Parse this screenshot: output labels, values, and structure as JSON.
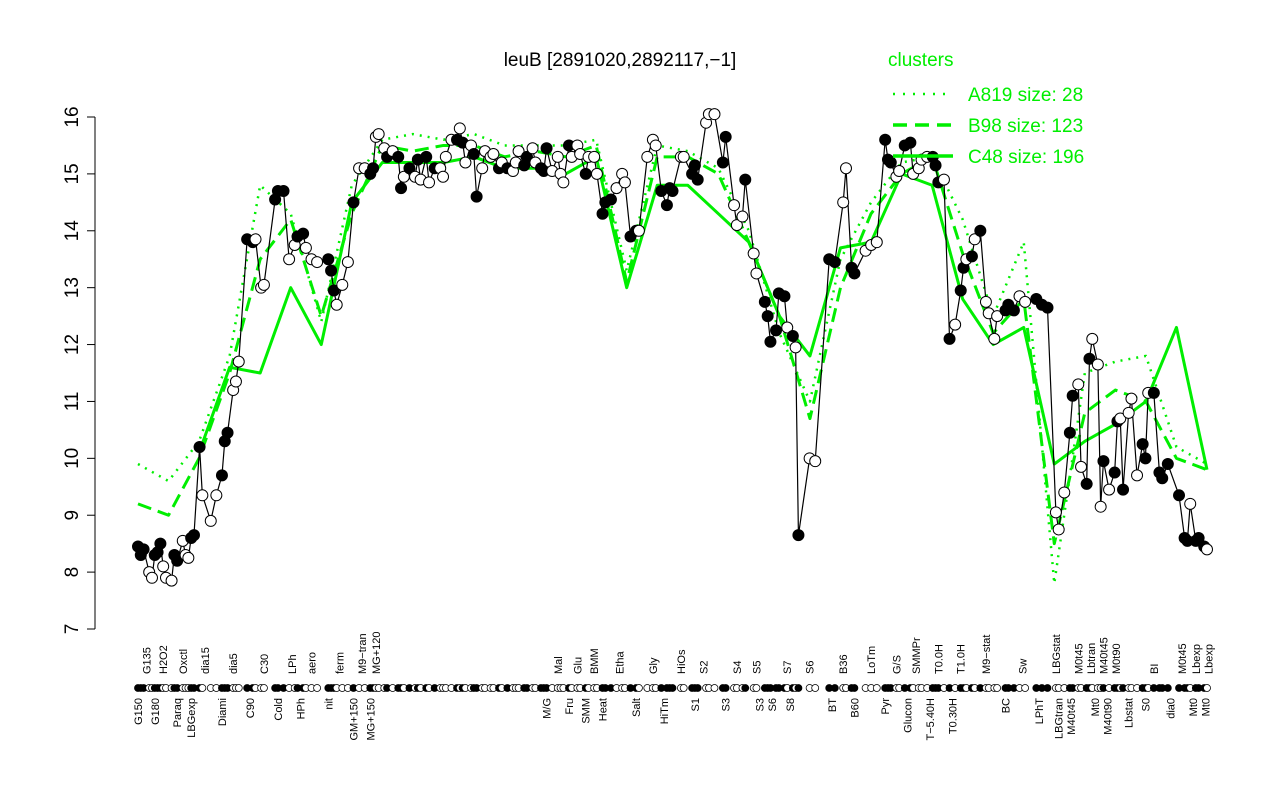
{
  "chart_data": {
    "type": "line",
    "title": "leuB [2891020,2892117,−1]",
    "xlabel": "",
    "ylabel": "",
    "ylim": [
      7,
      16
    ],
    "xlim": [
      0,
      382
    ],
    "yticks": [
      "7",
      "8",
      "9",
      "10",
      "11",
      "12",
      "13",
      "14",
      "15",
      "16"
    ],
    "grid": false,
    "colors": {
      "points": "#000000",
      "clusters": "#00ee00"
    },
    "legend": {
      "title": "clusters",
      "placement": "top-right",
      "entries": [
        {
          "label": "A819 size: 28",
          "style": "dotted"
        },
        {
          "label": "B98 size: 123",
          "style": "dashed"
        },
        {
          "label": "C48 size: 196",
          "style": "solid"
        }
      ]
    },
    "points_note": "[condition_index, expression, filled(1)/open(0)]",
    "points": [
      [
        0,
        8.45,
        1
      ],
      [
        1,
        8.3,
        1
      ],
      [
        2,
        8.4,
        1
      ],
      [
        4,
        8.0,
        0
      ],
      [
        5,
        7.9,
        0
      ],
      [
        6,
        8.3,
        1
      ],
      [
        7,
        8.35,
        1
      ],
      [
        8,
        8.5,
        1
      ],
      [
        9,
        8.1,
        0
      ],
      [
        10,
        7.9,
        0
      ],
      [
        12,
        7.85,
        0
      ],
      [
        13,
        8.3,
        1
      ],
      [
        14,
        8.2,
        1
      ],
      [
        16,
        8.55,
        0
      ],
      [
        17,
        8.3,
        0
      ],
      [
        18,
        8.25,
        0
      ],
      [
        19,
        8.6,
        1
      ],
      [
        20,
        8.65,
        1
      ],
      [
        22,
        10.2,
        1
      ],
      [
        23,
        9.35,
        0
      ],
      [
        26,
        8.9,
        0
      ],
      [
        28,
        9.35,
        0
      ],
      [
        30,
        9.7,
        1
      ],
      [
        31,
        10.3,
        1
      ],
      [
        32,
        10.45,
        1
      ],
      [
        34,
        11.2,
        0
      ],
      [
        35,
        11.35,
        0
      ],
      [
        36,
        11.7,
        0
      ],
      [
        39,
        13.85,
        1
      ],
      [
        41,
        13.8,
        1
      ],
      [
        42,
        13.85,
        0
      ],
      [
        44,
        13.0,
        0
      ],
      [
        45,
        13.05,
        0
      ],
      [
        49,
        14.55,
        1
      ],
      [
        50,
        14.7,
        1
      ],
      [
        52,
        14.7,
        1
      ],
      [
        54,
        13.5,
        0
      ],
      [
        56,
        13.75,
        0
      ],
      [
        57,
        13.9,
        1
      ],
      [
        59,
        13.95,
        1
      ],
      [
        60,
        13.7,
        0
      ],
      [
        62,
        13.5,
        0
      ],
      [
        64,
        13.45,
        0
      ],
      [
        68,
        13.5,
        1
      ],
      [
        69,
        13.3,
        1
      ],
      [
        70,
        12.95,
        1
      ],
      [
        71,
        12.7,
        0
      ],
      [
        73,
        13.05,
        0
      ],
      [
        75,
        13.45,
        0
      ],
      [
        77,
        14.5,
        1
      ],
      [
        79,
        15.1,
        0
      ],
      [
        81,
        15.1,
        0
      ],
      [
        83,
        15.0,
        1
      ],
      [
        84,
        15.1,
        1
      ],
      [
        85,
        15.65,
        0
      ],
      [
        86,
        15.7,
        0
      ],
      [
        88,
        15.45,
        0
      ],
      [
        89,
        15.3,
        1
      ],
      [
        91,
        15.4,
        0
      ],
      [
        93,
        15.3,
        1
      ],
      [
        94,
        14.75,
        1
      ],
      [
        95,
        14.95,
        0
      ],
      [
        97,
        15.1,
        1
      ],
      [
        99,
        14.95,
        0
      ],
      [
        100,
        15.25,
        1
      ],
      [
        101,
        14.9,
        0
      ],
      [
        103,
        15.3,
        1
      ],
      [
        104,
        14.85,
        0
      ],
      [
        106,
        15.1,
        1
      ],
      [
        108,
        15.1,
        0
      ],
      [
        109,
        14.95,
        0
      ],
      [
        110,
        15.3,
        0
      ],
      [
        112,
        15.6,
        0
      ],
      [
        114,
        15.6,
        1
      ],
      [
        115,
        15.8,
        0
      ],
      [
        116,
        15.55,
        1
      ],
      [
        117,
        15.2,
        0
      ],
      [
        119,
        15.5,
        0
      ],
      [
        120,
        15.35,
        1
      ],
      [
        121,
        14.6,
        1
      ],
      [
        123,
        15.1,
        0
      ],
      [
        124,
        15.4,
        0
      ],
      [
        126,
        15.3,
        0
      ],
      [
        127,
        15.35,
        0
      ],
      [
        129,
        15.1,
        1
      ],
      [
        130,
        15.2,
        0
      ],
      [
        132,
        15.1,
        1
      ],
      [
        134,
        15.05,
        0
      ],
      [
        135,
        15.2,
        0
      ],
      [
        136,
        15.4,
        0
      ],
      [
        138,
        15.15,
        1
      ],
      [
        139,
        15.3,
        1
      ],
      [
        141,
        15.45,
        0
      ],
      [
        142,
        15.2,
        0
      ],
      [
        144,
        15.1,
        1
      ],
      [
        145,
        15.05,
        1
      ],
      [
        146,
        15.45,
        1
      ],
      [
        148,
        15.05,
        0
      ],
      [
        150,
        15.3,
        0
      ],
      [
        151,
        15.0,
        0
      ],
      [
        152,
        14.85,
        0
      ],
      [
        154,
        15.5,
        1
      ],
      [
        155,
        15.3,
        0
      ],
      [
        157,
        15.5,
        0
      ],
      [
        158,
        15.35,
        0
      ],
      [
        160,
        15.0,
        1
      ],
      [
        161,
        15.3,
        0
      ],
      [
        163,
        15.3,
        0
      ],
      [
        164,
        15.0,
        0
      ],
      [
        166,
        14.3,
        1
      ],
      [
        167,
        14.5,
        1
      ],
      [
        169,
        14.55,
        1
      ],
      [
        171,
        14.75,
        0
      ],
      [
        173,
        15.0,
        0
      ],
      [
        174,
        14.85,
        0
      ],
      [
        176,
        13.9,
        1
      ],
      [
        178,
        14.0,
        1
      ],
      [
        179,
        14.0,
        0
      ],
      [
        182,
        15.3,
        0
      ],
      [
        184,
        15.6,
        0
      ],
      [
        185,
        15.5,
        0
      ],
      [
        187,
        14.7,
        1
      ],
      [
        189,
        14.45,
        1
      ],
      [
        190,
        14.75,
        1
      ],
      [
        191,
        14.7,
        1
      ],
      [
        194,
        15.3,
        0
      ],
      [
        195,
        15.3,
        0
      ],
      [
        198,
        15.0,
        1
      ],
      [
        199,
        15.15,
        1
      ],
      [
        200,
        14.9,
        1
      ],
      [
        203,
        15.9,
        0
      ],
      [
        204,
        16.05,
        0
      ],
      [
        206,
        16.05,
        0
      ],
      [
        209,
        15.2,
        1
      ],
      [
        210,
        15.65,
        1
      ],
      [
        213,
        14.45,
        0
      ],
      [
        214,
        14.1,
        0
      ],
      [
        216,
        14.25,
        0
      ],
      [
        217,
        14.9,
        1
      ],
      [
        220,
        13.6,
        0
      ],
      [
        221,
        13.25,
        0
      ],
      [
        224,
        12.75,
        1
      ],
      [
        225,
        12.5,
        1
      ],
      [
        226,
        12.05,
        1
      ],
      [
        228,
        12.25,
        1
      ],
      [
        229,
        12.9,
        1
      ],
      [
        231,
        12.85,
        1
      ],
      [
        232,
        12.3,
        0
      ],
      [
        234,
        12.15,
        1
      ],
      [
        235,
        11.95,
        0
      ],
      [
        236,
        8.65,
        1
      ],
      [
        240,
        10.0,
        0
      ],
      [
        242,
        9.95,
        0
      ],
      [
        247,
        13.5,
        1
      ],
      [
        249,
        13.45,
        1
      ],
      [
        252,
        14.5,
        0
      ],
      [
        253,
        15.1,
        0
      ],
      [
        255,
        13.35,
        1
      ],
      [
        256,
        13.25,
        1
      ],
      [
        260,
        13.65,
        0
      ],
      [
        262,
        13.75,
        0
      ],
      [
        264,
        13.8,
        0
      ],
      [
        267,
        15.6,
        1
      ],
      [
        268,
        15.25,
        1
      ],
      [
        269,
        15.2,
        1
      ],
      [
        271,
        14.95,
        0
      ],
      [
        272,
        15.05,
        0
      ],
      [
        274,
        15.5,
        1
      ],
      [
        276,
        15.55,
        1
      ],
      [
        277,
        15.0,
        0
      ],
      [
        279,
        15.1,
        0
      ],
      [
        280,
        15.25,
        0
      ],
      [
        282,
        15.3,
        0
      ],
      [
        284,
        15.3,
        1
      ],
      [
        285,
        15.15,
        1
      ],
      [
        286,
        14.85,
        1
      ],
      [
        288,
        14.9,
        0
      ],
      [
        290,
        12.1,
        1
      ],
      [
        292,
        12.35,
        0
      ],
      [
        294,
        12.95,
        1
      ],
      [
        295,
        13.35,
        1
      ],
      [
        296,
        13.5,
        0
      ],
      [
        298,
        13.55,
        1
      ],
      [
        299,
        13.85,
        0
      ],
      [
        301,
        14.0,
        1
      ],
      [
        303,
        12.75,
        0
      ],
      [
        304,
        12.55,
        0
      ],
      [
        306,
        12.1,
        0
      ],
      [
        307,
        12.5,
        0
      ],
      [
        310,
        12.6,
        1
      ],
      [
        311,
        12.7,
        1
      ],
      [
        313,
        12.6,
        1
      ],
      [
        315,
        12.85,
        0
      ],
      [
        317,
        12.75,
        0
      ],
      [
        321,
        12.8,
        1
      ],
      [
        323,
        12.7,
        1
      ],
      [
        325,
        12.65,
        1
      ],
      [
        328,
        9.05,
        0
      ],
      [
        329,
        8.75,
        0
      ],
      [
        331,
        9.4,
        0
      ],
      [
        333,
        10.45,
        1
      ],
      [
        334,
        11.1,
        1
      ],
      [
        336,
        11.3,
        0
      ],
      [
        337,
        9.85,
        0
      ],
      [
        339,
        9.55,
        1
      ],
      [
        340,
        11.75,
        1
      ],
      [
        341,
        12.1,
        0
      ],
      [
        343,
        11.65,
        0
      ],
      [
        344,
        9.15,
        0
      ],
      [
        345,
        9.95,
        1
      ],
      [
        347,
        9.45,
        0
      ],
      [
        349,
        9.75,
        1
      ],
      [
        350,
        10.65,
        1
      ],
      [
        351,
        10.7,
        0
      ],
      [
        352,
        9.45,
        1
      ],
      [
        354,
        10.8,
        0
      ],
      [
        355,
        11.05,
        0
      ],
      [
        357,
        9.7,
        0
      ],
      [
        359,
        10.25,
        1
      ],
      [
        360,
        10.0,
        1
      ],
      [
        361,
        11.15,
        0
      ],
      [
        363,
        11.15,
        1
      ],
      [
        365,
        9.75,
        1
      ],
      [
        366,
        9.65,
        1
      ],
      [
        368,
        9.9,
        1
      ],
      [
        372,
        9.35,
        1
      ],
      [
        374,
        8.6,
        1
      ],
      [
        375,
        8.55,
        1
      ],
      [
        376,
        9.2,
        0
      ],
      [
        378,
        8.55,
        1
      ],
      [
        379,
        8.6,
        1
      ],
      [
        381,
        8.45,
        1
      ],
      [
        382,
        8.4,
        0
      ]
    ],
    "clusters": [
      {
        "name": "A819",
        "style": "dotted",
        "values": [
          9.9,
          9.6,
          10.3,
          11.8,
          14.8,
          14.3,
          12.4,
          14.8,
          15.6,
          15.7,
          15.6,
          15.7,
          15.5,
          15.5,
          15.5,
          15.6,
          13.3,
          15.5,
          15.4,
          15.1,
          14.0,
          12.2,
          11.0,
          13.5,
          14.5,
          15.2,
          15.3,
          14.2,
          12.5,
          13.8,
          7.8,
          11.5,
          11.7,
          11.8,
          10.2,
          9.9
        ]
      },
      {
        "name": "B98",
        "style": "dashed",
        "values": [
          9.2,
          9.0,
          10.0,
          11.5,
          13.5,
          14.2,
          12.5,
          14.3,
          15.5,
          15.4,
          15.5,
          15.5,
          15.3,
          15.4,
          15.3,
          15.5,
          13.1,
          15.3,
          15.3,
          15.0,
          13.8,
          12.5,
          10.7,
          13.0,
          14.3,
          15.0,
          15.3,
          13.6,
          12.2,
          12.8,
          8.5,
          10.8,
          11.2,
          11.0,
          10.0,
          9.8
        ]
      },
      {
        "name": "C48",
        "style": "solid",
        "values": [
          null,
          null,
          10.1,
          11.6,
          11.5,
          13.0,
          12.0,
          14.5,
          15.2,
          15.2,
          15.2,
          15.3,
          15.1,
          15.1,
          15.0,
          15.3,
          13.0,
          14.8,
          14.8,
          14.3,
          13.8,
          12.5,
          11.8,
          13.7,
          13.8,
          15.0,
          14.8,
          12.8,
          12.0,
          12.3,
          9.9,
          10.3,
          10.6,
          11.0,
          12.3,
          9.8
        ]
      }
    ],
    "xticklabels": [
      [
        "G150",
        0,
        0
      ],
      [
        "G135",
        3,
        1
      ],
      [
        "G180",
        6,
        0
      ],
      [
        "H2O2",
        9,
        1
      ],
      [
        "Paraq",
        14,
        0
      ],
      [
        "Oxctl",
        16,
        1
      ],
      [
        "LBGexp",
        19,
        0
      ],
      [
        "dia15",
        24,
        1
      ],
      [
        "Diami",
        30,
        0
      ],
      [
        "dia5",
        34,
        1
      ],
      [
        "C90",
        40,
        0
      ],
      [
        "C30",
        45,
        1
      ],
      [
        "Cold",
        50,
        0
      ],
      [
        "LPh",
        55,
        1
      ],
      [
        "HPh",
        58,
        0
      ],
      [
        "aero",
        62,
        1
      ],
      [
        "nit",
        68,
        0
      ],
      [
        "ferm",
        72,
        1
      ],
      [
        "GM+150",
        77,
        0
      ],
      [
        "M9−tran",
        80,
        1
      ],
      [
        "MG+150",
        83,
        0
      ],
      [
        "MG+120",
        85,
        1
      ],
      [
        "M/G",
        146,
        0
      ],
      [
        "Mal",
        150,
        1
      ],
      [
        "Fru",
        154,
        0
      ],
      [
        "Glu",
        157,
        1
      ],
      [
        "SMM",
        160,
        0
      ],
      [
        "BMM",
        163,
        1
      ],
      [
        "Heat",
        166,
        0
      ],
      [
        "Etha",
        172,
        1
      ],
      [
        "Salt",
        178,
        0
      ],
      [
        "Gly",
        184,
        1
      ],
      [
        "HiTm",
        188,
        0
      ],
      [
        "HiOs",
        194,
        1
      ],
      [
        "S1",
        199,
        0
      ],
      [
        "S2",
        202,
        1
      ],
      [
        "S3",
        210,
        0
      ],
      [
        "S4",
        214,
        1
      ],
      [
        "S3",
        222,
        0
      ],
      [
        "S5",
        221,
        1
      ],
      [
        "S6",
        225,
        0
      ],
      [
        "S7",
        232,
        1
      ],
      [
        "S8",
        233,
        0
      ],
      [
        "S6",
        240,
        1
      ],
      [
        "BT",
        248,
        0
      ],
      [
        "B36",
        252,
        1
      ],
      [
        "B60",
        256,
        0
      ],
      [
        "LoTm",
        262,
        1
      ],
      [
        "Pyr",
        267,
        0
      ],
      [
        "G/S",
        271,
        1
      ],
      [
        "Glucon",
        275,
        0
      ],
      [
        "SMMPr",
        278,
        1
      ],
      [
        "T−5.40H",
        283,
        0
      ],
      [
        "T0.0H",
        286,
        1
      ],
      [
        "T0.30H",
        291,
        0
      ],
      [
        "T1.0H",
        294,
        1
      ],
      [
        "M9−stat",
        303,
        1
      ],
      [
        "BC",
        310,
        0
      ],
      [
        "Sw",
        316,
        1
      ],
      [
        "LPhT",
        322,
        0
      ],
      [
        "LBGtran",
        329,
        0
      ],
      [
        "LBGstat",
        328,
        1
      ],
      [
        "M40t45",
        331,
        0
      ],
      [
        "M0t45",
        336,
        1
      ],
      [
        "Lbtran",
        338,
        1
      ],
      [
        "Mt0",
        342,
        0
      ],
      [
        "M40t45",
        342,
        1
      ],
      [
        "M40t90",
        345,
        0
      ],
      [
        "M0t90",
        348,
        1
      ],
      [
        "Lbstat",
        354,
        0
      ],
      [
        "S0",
        360,
        0
      ],
      [
        "BI",
        363,
        1
      ],
      [
        "dia0",
        369,
        0
      ],
      [
        "M0t45",
        373,
        1
      ],
      [
        "Mt0",
        377,
        0
      ],
      [
        "Lbexp",
        378,
        1
      ],
      [
        "Mt0",
        380,
        0
      ],
      [
        "Lbexp",
        381,
        1
      ]
    ]
  }
}
